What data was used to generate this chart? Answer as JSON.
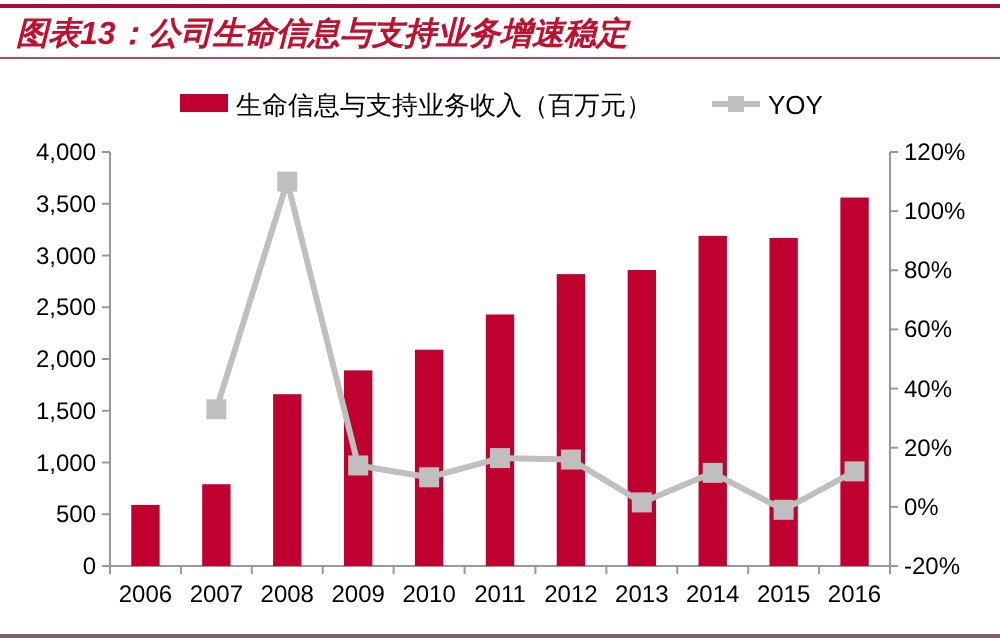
{
  "chart_data": {
    "type": "bar",
    "title": "图表13：公司生命信息与支持业务增速稳定",
    "categories": [
      "2006",
      "2007",
      "2008",
      "2009",
      "2010",
      "2011",
      "2012",
      "2013",
      "2014",
      "2015",
      "2016"
    ],
    "series": [
      {
        "name": "生命信息与支持业务收入（百万元）",
        "color": "#c0002f",
        "values": [
          590,
          790,
          1660,
          1890,
          2090,
          2430,
          2820,
          2860,
          3190,
          3170,
          3560
        ]
      },
      {
        "name": "YOY",
        "type": "line",
        "axis": "y2",
        "color": "#bfbfbf",
        "marker": "square",
        "values": [
          null,
          33,
          110,
          14,
          10,
          16.5,
          16,
          1.5,
          11.5,
          -1,
          12
        ]
      }
    ],
    "ylim": [
      0,
      4000
    ],
    "yticks": [
      0,
      500,
      {
        "value": 1000,
        "label": "1,000"
      },
      {
        "value": 1500,
        "label": "1,500"
      },
      {
        "value": 2000,
        "label": "2,000"
      },
      {
        "value": 2500,
        "label": "2,500"
      },
      {
        "value": 3000,
        "label": "3,000"
      },
      {
        "value": 3500,
        "label": "3,500"
      },
      {
        "value": 4000,
        "label": "4,000"
      }
    ],
    "y2lim": [
      -20,
      120
    ],
    "y2ticks": [
      {
        "value": -20,
        "label": "-20%"
      },
      {
        "value": 0,
        "label": "0%"
      },
      {
        "value": 20,
        "label": "20%"
      },
      {
        "value": 40,
        "label": "40%"
      },
      {
        "value": 60,
        "label": "60%"
      },
      {
        "value": 80,
        "label": "80%"
      },
      {
        "value": 100,
        "label": "100%"
      },
      {
        "value": 120,
        "label": "120%"
      }
    ],
    "legend": "top",
    "grid": false
  }
}
